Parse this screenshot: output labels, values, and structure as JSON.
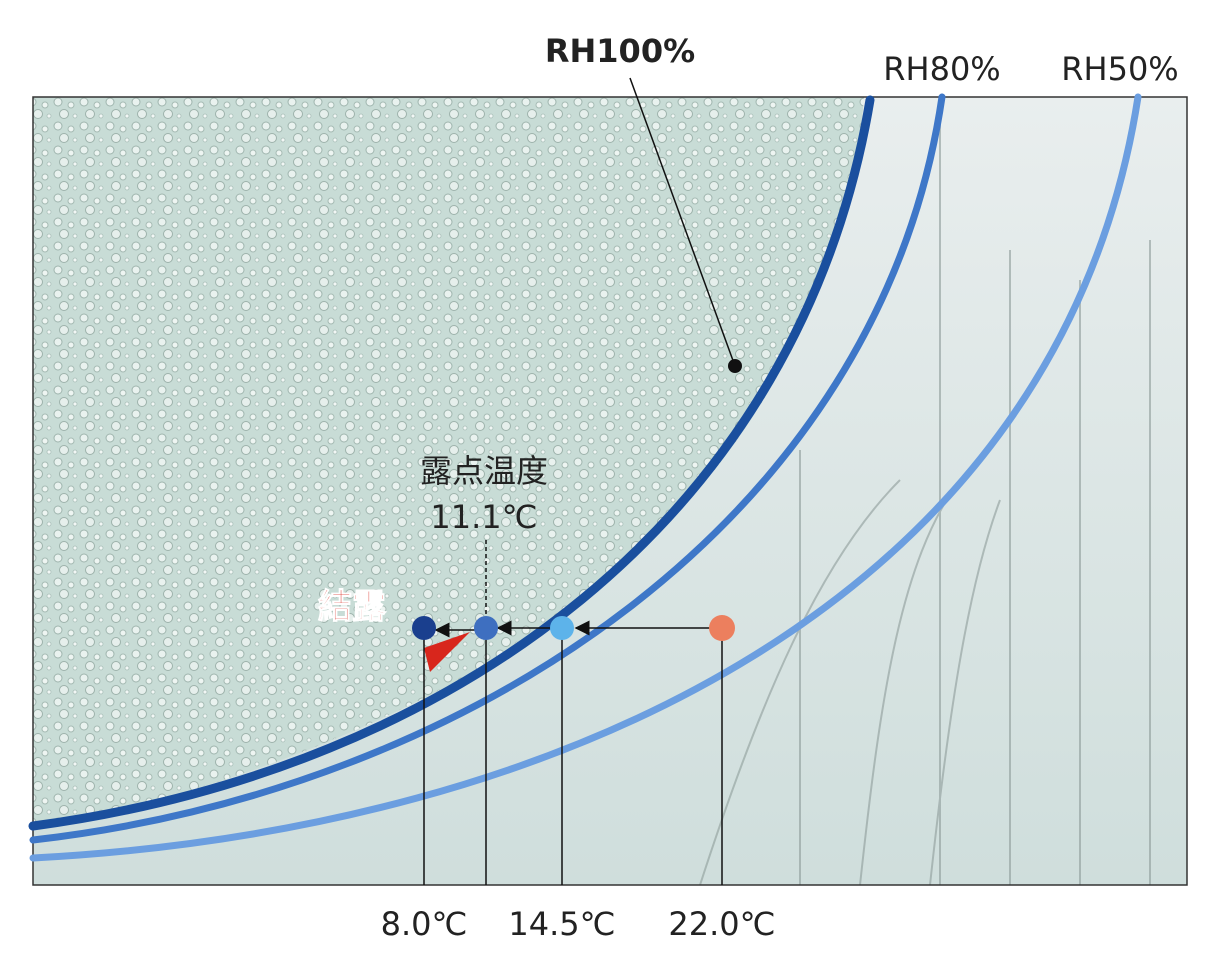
{
  "curves": [
    {
      "label": "RH100%"
    },
    {
      "label": "RH80%"
    },
    {
      "label": "RH50%"
    }
  ],
  "dew_point": {
    "label": "露点温度",
    "value": "11.1℃"
  },
  "condensation": "結露",
  "temperatures": [
    "8.0℃",
    "14.5℃",
    "22.0℃"
  ]
}
